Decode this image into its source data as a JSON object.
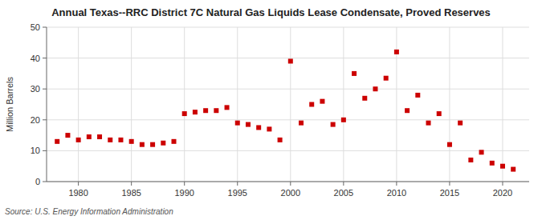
{
  "chart_data": {
    "type": "scatter",
    "title": "Annual Texas--RRC District 7C Natural Gas Liquids Lease Condensate, Proved Reserves",
    "y_label": "Million Barrels",
    "annotation": "Source: U.S. Energy Information Administration",
    "x": [
      1978,
      1979,
      1980,
      1981,
      1982,
      1983,
      1984,
      1985,
      1986,
      1987,
      1988,
      1989,
      1990,
      1991,
      1992,
      1993,
      1994,
      1995,
      1996,
      1997,
      1998,
      1999,
      2000,
      2001,
      2002,
      2003,
      2004,
      2005,
      2006,
      2007,
      2008,
      2009,
      2010,
      2011,
      2012,
      2013,
      2014,
      2015,
      2016,
      2017,
      2018,
      2019,
      2020,
      2021
    ],
    "values": [
      13,
      15,
      13.5,
      14.5,
      14.5,
      13.5,
      13.5,
      13,
      12,
      12,
      12.5,
      13,
      22,
      22.5,
      23,
      23,
      24,
      19,
      18.5,
      17.5,
      17,
      13.5,
      39,
      19,
      25,
      26,
      18.5,
      20,
      35,
      27,
      30,
      33.5,
      42,
      23,
      28,
      19,
      22,
      12,
      19,
      7,
      9.5,
      6,
      5,
      4
    ],
    "color": "#cc0000",
    "marker": "square",
    "xlim": [
      1977,
      2022.5
    ],
    "ylim": [
      0,
      50
    ],
    "xticks": [
      1980,
      1985,
      1990,
      1995,
      2000,
      2005,
      2010,
      2015,
      2020
    ],
    "yticks": [
      0,
      10,
      20,
      30,
      40,
      50
    ],
    "grid": true
  }
}
